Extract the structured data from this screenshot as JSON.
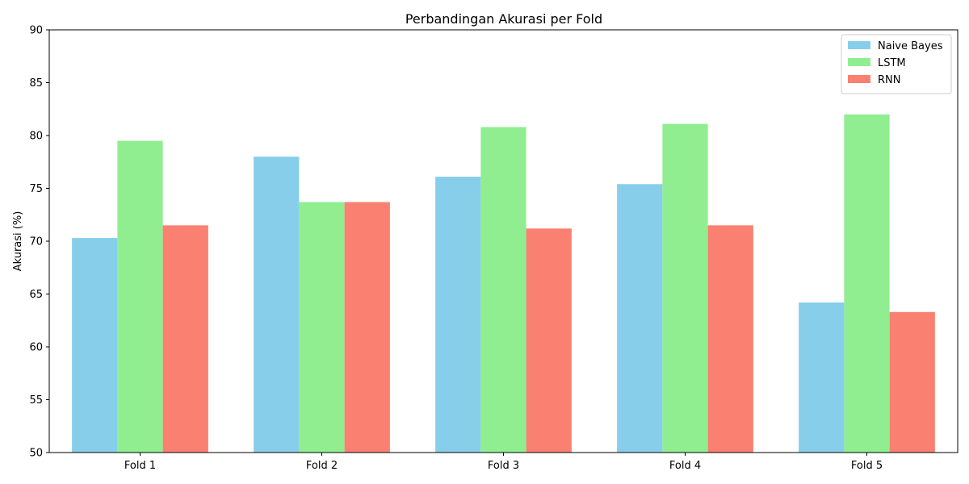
{
  "chart_data": {
    "type": "bar",
    "title": "Perbandingan Akurasi per Fold",
    "xlabel": "",
    "ylabel": "Akurasi (%)",
    "categories": [
      "Fold 1",
      "Fold 2",
      "Fold 3",
      "Fold 4",
      "Fold 5"
    ],
    "series": [
      {
        "name": "Naive Bayes",
        "color": "#87ceeb",
        "values": [
          70.3,
          78.0,
          76.1,
          75.4,
          64.2
        ]
      },
      {
        "name": "LSTM",
        "color": "#90ee90",
        "values": [
          79.5,
          73.7,
          80.8,
          81.1,
          82.0
        ]
      },
      {
        "name": "RNN",
        "color": "#fa8072",
        "values": [
          71.5,
          73.7,
          71.2,
          71.5,
          63.3
        ]
      }
    ],
    "ylim": [
      50,
      90
    ],
    "yticks": [
      50,
      55,
      60,
      65,
      70,
      75,
      80,
      85,
      90
    ],
    "grid": false,
    "legend_position": "top-right"
  }
}
